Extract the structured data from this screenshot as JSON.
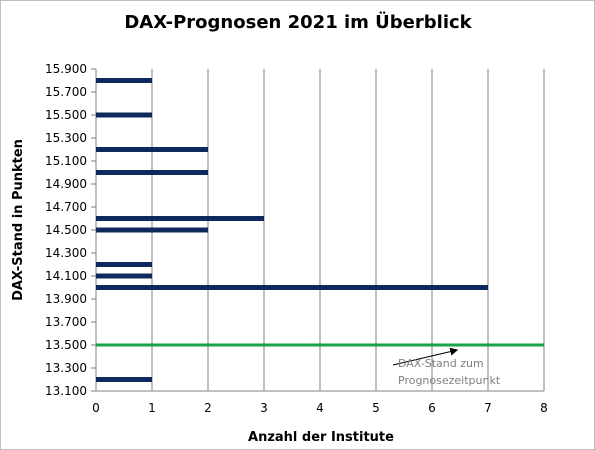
{
  "chart_data": {
    "type": "bar",
    "orientation": "horizontal",
    "title": "DAX-Prognosen 2021 im Überblick",
    "xlabel": "Anzahl der Institute",
    "ylabel": "DAX-Stand in Punkten",
    "xlim": [
      0,
      8
    ],
    "ylim": [
      13100,
      15900
    ],
    "x_ticks": [
      "0",
      "1",
      "2",
      "3",
      "4",
      "5",
      "6",
      "7",
      "8"
    ],
    "y_ticks": [
      "15.900",
      "15.700",
      "15.500",
      "15.300",
      "15.100",
      "14.900",
      "14.700",
      "14.500",
      "14.300",
      "14.100",
      "13.900",
      "13.700",
      "13.500",
      "13.300",
      "13.100"
    ],
    "grid": "vertical",
    "bars": [
      {
        "y": 15800,
        "value": 1
      },
      {
        "y": 15500,
        "value": 1
      },
      {
        "y": 15200,
        "value": 2
      },
      {
        "y": 15000,
        "value": 2
      },
      {
        "y": 14600,
        "value": 3
      },
      {
        "y": 14500,
        "value": 2
      },
      {
        "y": 14200,
        "value": 1
      },
      {
        "y": 14100,
        "value": 1
      },
      {
        "y": 14000,
        "value": 7
      },
      {
        "y": 13200,
        "value": 1
      }
    ],
    "reference_line": {
      "y": 13500,
      "color": "#1aa34a"
    },
    "annotation": {
      "text_line1": "DAX-Stand zum",
      "text_line2": "Prognosezeitpunkt",
      "target_x": 4.7,
      "target_y": 13500
    }
  },
  "colors": {
    "bar": "#0e2a5e",
    "grid": "#808080",
    "reference": "#1aa34a",
    "annotation": "#7f7f7f"
  }
}
